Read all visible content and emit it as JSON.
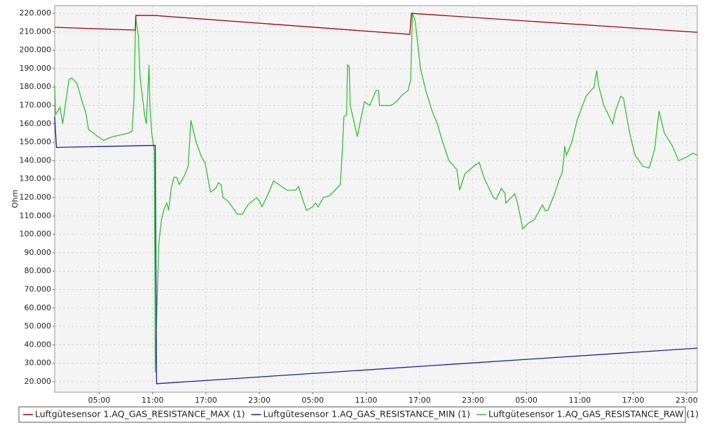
{
  "chart_data": {
    "type": "line",
    "y_label": "Ohm",
    "grid": true,
    "legend": "bottom",
    "xlim": [
      0,
      72.2
    ],
    "xticks": [
      {
        "value": 5,
        "label": "05:00"
      },
      {
        "value": 11,
        "label": "11:00"
      },
      {
        "value": 17,
        "label": "17:00"
      },
      {
        "value": 23,
        "label": "23:00"
      },
      {
        "value": 29,
        "label": "05:00"
      },
      {
        "value": 35,
        "label": "11:00"
      },
      {
        "value": 41,
        "label": "17:00"
      },
      {
        "value": 47,
        "label": "23:00"
      },
      {
        "value": 53,
        "label": "05:00"
      },
      {
        "value": 59,
        "label": "11:00"
      },
      {
        "value": 65,
        "label": "17:00"
      },
      {
        "value": 71,
        "label": "23:00"
      }
    ],
    "ylim": [
      14300,
      224200
    ],
    "yticks": [
      {
        "value": 20000,
        "label": "20.000"
      },
      {
        "value": 30000,
        "label": "30.000"
      },
      {
        "value": 40000,
        "label": "40.000"
      },
      {
        "value": 50000,
        "label": "50.000"
      },
      {
        "value": 60000,
        "label": "60.000"
      },
      {
        "value": 70000,
        "label": "70.000"
      },
      {
        "value": 80000,
        "label": "80.000"
      },
      {
        "value": 90000,
        "label": "90.000"
      },
      {
        "value": 100000,
        "label": "100.000"
      },
      {
        "value": 110000,
        "label": "110.000"
      },
      {
        "value": 120000,
        "label": "120.000"
      },
      {
        "value": 130000,
        "label": "130.000"
      },
      {
        "value": 140000,
        "label": "140.000"
      },
      {
        "value": 150000,
        "label": "150.000"
      },
      {
        "value": 160000,
        "label": "160.000"
      },
      {
        "value": 170000,
        "label": "170.000"
      },
      {
        "value": 180000,
        "label": "180.000"
      },
      {
        "value": 190000,
        "label": "190.000"
      },
      {
        "value": 200000,
        "label": "200.000"
      },
      {
        "value": 210000,
        "label": "210.000"
      },
      {
        "value": 220000,
        "label": "220.000"
      }
    ],
    "series": [
      {
        "name": "Luftgütesensor 1.AQ_GAS_RESISTANCE_MAX (1)",
        "color": "#a80000",
        "x": [
          0,
          9.06,
          9.13,
          11.34,
          39.9,
          40.08,
          72.2
        ],
        "values": [
          212400,
          210900,
          218900,
          218800,
          208600,
          220000,
          209700
        ]
      },
      {
        "name": "Luftgütesensor 1.AQ_GAS_RESISTANCE_MIN (1)",
        "color": "#1c1ca8",
        "x": [
          0,
          0.2,
          11.3,
          11.45,
          72.2
        ],
        "values": [
          164000,
          147200,
          148300,
          18900,
          38200
        ]
      },
      {
        "name": "Luftgütesensor 1.AQ_GAS_RESISTANCE_RAW (1)",
        "color": "#2ec42e",
        "x": [
          0.0,
          0.1,
          0.6,
          0.9,
          1.6,
          1.9,
          2.5,
          3.1,
          3.5,
          3.8,
          4.6,
          5.5,
          6.5,
          7.4,
          8.3,
          8.7,
          8.9,
          9.1,
          9.4,
          9.6,
          9.8,
          10.1,
          10.3,
          10.6,
          10.7,
          10.9,
          11.2,
          11.3,
          11.4,
          11.7,
          12.0,
          12.3,
          12.6,
          12.8,
          13.1,
          13.4,
          13.7,
          14.0,
          14.6,
          15.0,
          15.3,
          15.9,
          16.5,
          16.9,
          17.5,
          18.1,
          18.4,
          18.7,
          18.9,
          19.5,
          20.5,
          21.1,
          21.7,
          22.7,
          23.0,
          23.3,
          23.9,
          24.6,
          25.5,
          26.1,
          27.1,
          27.4,
          28.0,
          28.3,
          29.0,
          29.3,
          29.6,
          30.2,
          30.9,
          31.5,
          32.1,
          32.3,
          32.5,
          32.8,
          32.9,
          33.1,
          33.2,
          33.5,
          34.0,
          34.5,
          34.8,
          35.4,
          36.1,
          36.4,
          36.5,
          37.2,
          37.8,
          38.4,
          39.1,
          39.7,
          40.0,
          40.2,
          40.5,
          40.8,
          41.1,
          41.7,
          42.4,
          43.0,
          43.6,
          44.3,
          45.2,
          45.5,
          46.1,
          47.1,
          47.7,
          48.3,
          49.3,
          49.6,
          50.2,
          50.6,
          50.7,
          51.7,
          52.0,
          52.6,
          53.2,
          53.9,
          54.8,
          55.1,
          55.4,
          56.1,
          56.7,
          57.0,
          57.2,
          57.3,
          57.5,
          58.1,
          58.7,
          59.7,
          60.6,
          60.9,
          61.1,
          61.7,
          62.7,
          63.0,
          63.6,
          63.9,
          64.6,
          65.2,
          66.1,
          66.8,
          67.4,
          67.9,
          68.5,
          69.4,
          70.1,
          71.0,
          71.7,
          72.2
        ],
        "values": [
          181000,
          165000,
          169000,
          160000,
          184000,
          185000,
          182000,
          172000,
          166000,
          157000,
          154000,
          151000,
          153000,
          154000,
          155000,
          156000,
          172000,
          218000,
          208000,
          185000,
          177000,
          165000,
          160000,
          192000,
          170000,
          155000,
          145000,
          25000,
          45000,
          95000,
          108000,
          114000,
          117000,
          113000,
          125000,
          131000,
          131000,
          127000,
          132000,
          137000,
          162000,
          150000,
          142000,
          139000,
          123000,
          125000,
          128000,
          127000,
          120000,
          118000,
          111000,
          111000,
          116000,
          120000,
          118000,
          115000,
          121000,
          129000,
          126000,
          124000,
          124000,
          126000,
          117000,
          113000,
          115000,
          117000,
          115000,
          120000,
          121000,
          124000,
          127000,
          144000,
          164000,
          165000,
          192000,
          191000,
          170000,
          164000,
          153000,
          165000,
          172000,
          170000,
          178000,
          178000,
          170000,
          170000,
          170000,
          172000,
          176000,
          178000,
          184000,
          220000,
          216000,
          203000,
          190000,
          178000,
          167000,
          160000,
          150000,
          140000,
          135000,
          124000,
          133000,
          137000,
          139000,
          130000,
          120000,
          119000,
          125000,
          122000,
          117000,
          122000,
          117000,
          103000,
          106000,
          108000,
          116000,
          113000,
          113000,
          121000,
          130000,
          133000,
          141000,
          148000,
          143000,
          150000,
          162000,
          175000,
          180000,
          189000,
          181000,
          170000,
          160000,
          167000,
          175000,
          174000,
          155000,
          143000,
          137000,
          136000,
          146000,
          167000,
          155000,
          148000,
          140000,
          142000,
          144000,
          143000
        ]
      }
    ]
  }
}
